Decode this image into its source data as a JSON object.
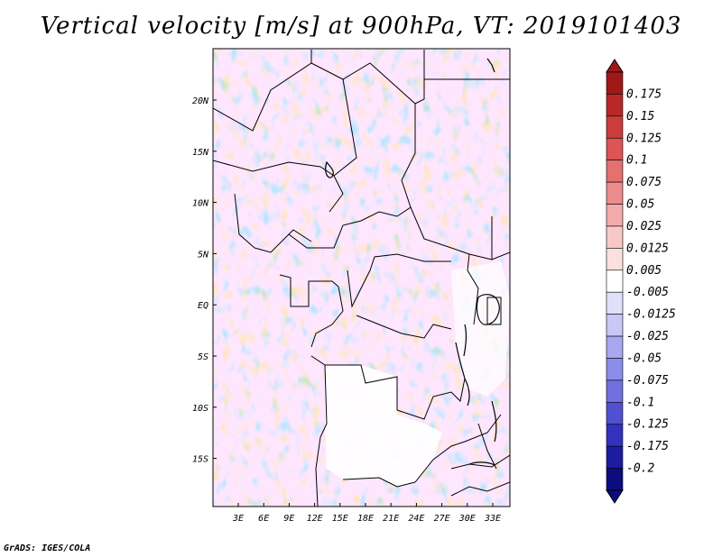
{
  "title": "Vertical velocity [m/s] at 900hPa, VT: 2019101403",
  "credit": "GrADS: IGES/COLA",
  "map": {
    "lat_labels": [
      "20N",
      "15N",
      "10N",
      "5N",
      "EQ",
      "5S",
      "10S",
      "15S"
    ],
    "lon_labels": [
      "3E",
      "6E",
      "9E",
      "12E",
      "15E",
      "18E",
      "21E",
      "24E",
      "27E",
      "30E",
      "33E"
    ]
  },
  "colorbar": {
    "labels": [
      "0.175",
      "0.15",
      "0.125",
      "0.1",
      "0.075",
      "0.05",
      "0.025",
      "0.0125",
      "0.005",
      "-0.005",
      "-0.0125",
      "-0.025",
      "-0.05",
      "-0.075",
      "-0.1",
      "-0.125",
      "-0.175",
      "-0.2"
    ],
    "colors": [
      "#a01818",
      "#b82828",
      "#cc3c3c",
      "#dc5454",
      "#e47070",
      "#ec8c8c",
      "#f4aaaa",
      "#f8c8c8",
      "#fbe0e0",
      "#ffffff",
      "#e0e0fb",
      "#c8c8f6",
      "#a8a8f0",
      "#8c8cea",
      "#7070e0",
      "#5050d0",
      "#3232bc",
      "#1c1ca0",
      "#0c0c80"
    ]
  }
}
